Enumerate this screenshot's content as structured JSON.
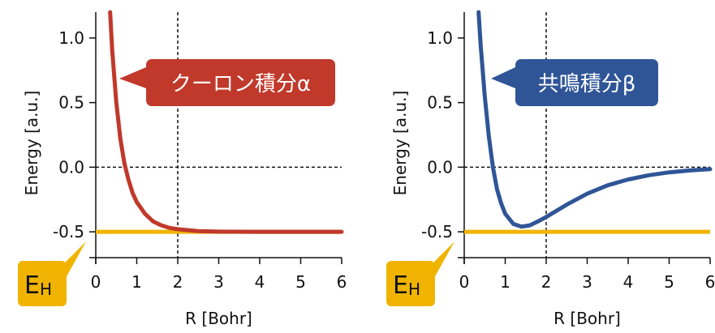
{
  "chart_data": [
    {
      "type": "line",
      "xlabel": "R [Bohr]",
      "ylabel": "Energy [a.u.]",
      "xlim": [
        0,
        6
      ],
      "ylim": [
        -0.7,
        1.2
      ],
      "xticks": [
        "0",
        "1",
        "2",
        "3",
        "4",
        "5",
        "6"
      ],
      "yticks": [
        "1.0",
        "0.5",
        "0.0",
        "-0.5"
      ],
      "vline_x": 2,
      "hline_y": 0,
      "reference_line": {
        "y": -0.5,
        "label_main": "E",
        "label_sub": "H",
        "color": "#f0b400"
      },
      "callout": {
        "text": "クーロン積分α",
        "color": "#c0392b"
      },
      "series": [
        {
          "color": "#c0392b",
          "x": [
            0.35,
            0.4,
            0.5,
            0.6,
            0.7,
            0.8,
            0.9,
            1.0,
            1.2,
            1.4,
            1.6,
            1.8,
            2.0,
            2.5,
            3.0,
            4.0,
            5.0,
            6.0
          ],
          "y": [
            1.2,
            0.91,
            0.5,
            0.22,
            0.03,
            -0.1,
            -0.2,
            -0.27,
            -0.36,
            -0.42,
            -0.45,
            -0.47,
            -0.48,
            -0.495,
            -0.499,
            -0.5,
            -0.5,
            -0.5
          ]
        }
      ]
    },
    {
      "type": "line",
      "xlabel": "R [Bohr]",
      "ylabel": "Energy [a.u.]",
      "xlim": [
        0,
        6
      ],
      "ylim": [
        -0.7,
        1.2
      ],
      "xticks": [
        "0",
        "1",
        "2",
        "3",
        "4",
        "5",
        "6"
      ],
      "yticks": [
        "1.0",
        "0.5",
        "0.0",
        "-0.5"
      ],
      "vline_x": 2,
      "hline_y": 0,
      "reference_line": {
        "y": -0.5,
        "label_main": "E",
        "label_sub": "H",
        "color": "#f0b400"
      },
      "callout": {
        "text": "共鳴積分β",
        "color": "#2f5597"
      },
      "series": [
        {
          "color": "#2f5597",
          "x": [
            0.35,
            0.4,
            0.5,
            0.6,
            0.7,
            0.8,
            0.9,
            1.0,
            1.2,
            1.4,
            1.6,
            1.8,
            2.0,
            2.5,
            3.0,
            3.5,
            4.0,
            4.5,
            5.0,
            5.5,
            6.0
          ],
          "y": [
            1.2,
            0.95,
            0.55,
            0.24,
            0.0,
            -0.17,
            -0.28,
            -0.36,
            -0.44,
            -0.46,
            -0.45,
            -0.42,
            -0.385,
            -0.29,
            -0.205,
            -0.14,
            -0.095,
            -0.062,
            -0.04,
            -0.025,
            -0.015
          ]
        }
      ]
    }
  ]
}
